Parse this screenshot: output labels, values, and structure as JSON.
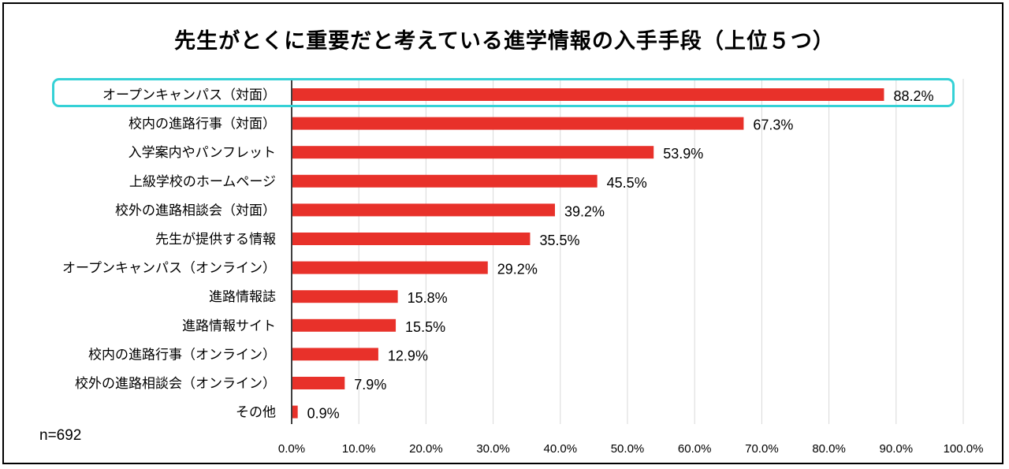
{
  "chart_data": {
    "type": "bar",
    "orientation": "horizontal",
    "title": "先生がとくに重要だと考えている進学情報の入手手段（上位５つ）",
    "categories": [
      "オープンキャンパス（対面）",
      "校内の進路行事（対面）",
      "入学案内やパンフレット",
      "上級学校のホームページ",
      "校外の進路相談会（対面）",
      "先生が提供する情報",
      "オープンキャンパス（オンライン）",
      "進路情報誌",
      "進路情報サイト",
      "校内の進路行事（オンライン）",
      "校外の進路相談会（オンライン）",
      "その他"
    ],
    "values": [
      88.2,
      67.3,
      53.9,
      45.5,
      39.2,
      35.5,
      29.2,
      15.8,
      15.5,
      12.9,
      7.9,
      0.9
    ],
    "value_labels": [
      "88.2%",
      "67.3%",
      "53.9%",
      "45.5%",
      "39.2%",
      "35.5%",
      "29.2%",
      "15.8%",
      "15.5%",
      "12.9%",
      "7.9%",
      "0.9%"
    ],
    "xlim": [
      0,
      100
    ],
    "x_ticks": [
      "0.0%",
      "10.0%",
      "20.0%",
      "30.0%",
      "40.0%",
      "50.0%",
      "60.0%",
      "70.0%",
      "80.0%",
      "90.0%",
      "100.0%"
    ],
    "grid": "vertical",
    "highlighted_category": "オープンキャンパス（対面）",
    "note": "n=692",
    "colors": {
      "bar": "#e8312a",
      "grid": "#d9d9d9",
      "highlight": "#35d1d6"
    }
  }
}
